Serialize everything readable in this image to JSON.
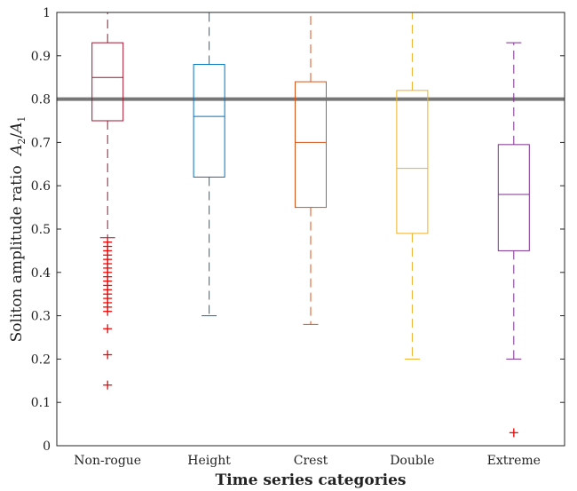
{
  "chart_data": {
    "type": "box",
    "xlabel": "Time series categories",
    "ylabel": "Soliton amplitude ratio",
    "ylabel_math": "A2/A1",
    "ylim": [
      0,
      1
    ],
    "yticks": [
      "0",
      "0.1",
      "0.2",
      "0.3",
      "0.4",
      "0.5",
      "0.6",
      "0.7",
      "0.8",
      "0.9",
      "1"
    ],
    "reference_line": 0.8,
    "grid": false,
    "categories": [
      "Non-rogue",
      "Height",
      "Crest",
      "Double",
      "Extreme"
    ],
    "boxes": [
      {
        "name": "Non-rogue",
        "color": "#A2142F",
        "whisker_low": 0.48,
        "q1": 0.75,
        "median": 0.85,
        "q3": 0.93,
        "whisker_high": 1.0,
        "outliers": [
          0.47,
          0.46,
          0.45,
          0.44,
          0.43,
          0.42,
          0.41,
          0.4,
          0.39,
          0.38,
          0.37,
          0.36,
          0.35,
          0.34,
          0.33,
          0.32,
          0.31,
          0.27,
          0.21,
          0.14
        ]
      },
      {
        "name": "Height",
        "color": "#0072BD",
        "whisker_low": 0.3,
        "q1": 0.62,
        "median": 0.76,
        "q3": 0.88,
        "whisker_high": 1.0,
        "outliers": []
      },
      {
        "name": "Crest",
        "color": "#D95319",
        "whisker_low": 0.28,
        "q1": 0.55,
        "median": 0.7,
        "q3": 0.84,
        "whisker_high": 1.0,
        "outliers": []
      },
      {
        "name": "Double",
        "color": "#EDB120",
        "whisker_low": 0.2,
        "q1": 0.49,
        "median": 0.64,
        "q3": 0.82,
        "whisker_high": 1.0,
        "outliers": []
      },
      {
        "name": "Extreme",
        "color": "#7E2F8E",
        "whisker_low": 0.2,
        "q1": 0.45,
        "median": 0.58,
        "q3": 0.695,
        "whisker_high": 0.93,
        "outliers": [
          0.03
        ]
      }
    ],
    "outlier_color": "#FF0000",
    "reference_color": "#777777"
  }
}
